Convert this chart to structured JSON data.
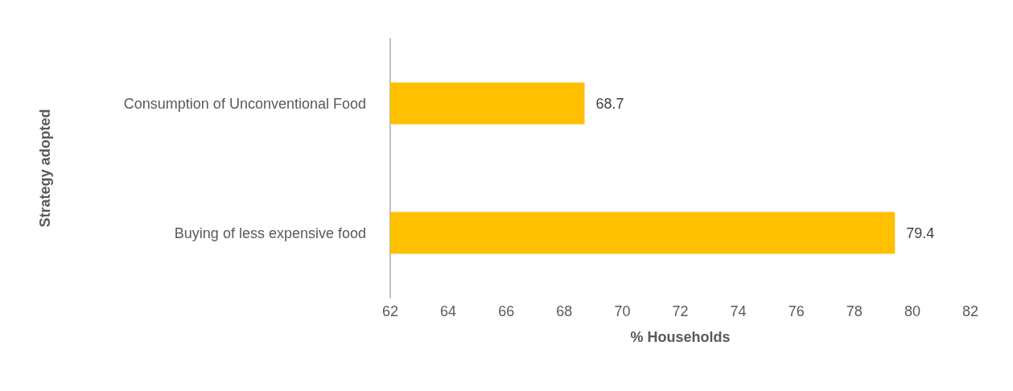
{
  "chart_data": {
    "type": "bar",
    "orientation": "horizontal",
    "categories": [
      "Consumption of Unconventional Food",
      "Buying of less expensive food"
    ],
    "values": [
      68.7,
      79.4
    ],
    "color": "#ffc000",
    "data_labels": true,
    "xlabel": "% Households",
    "ylabel": "Strategy adopted",
    "xlim": [
      62,
      82
    ],
    "xticks": [
      62,
      64,
      66,
      68,
      70,
      72,
      74,
      76,
      78,
      80,
      82
    ],
    "grid": false
  }
}
